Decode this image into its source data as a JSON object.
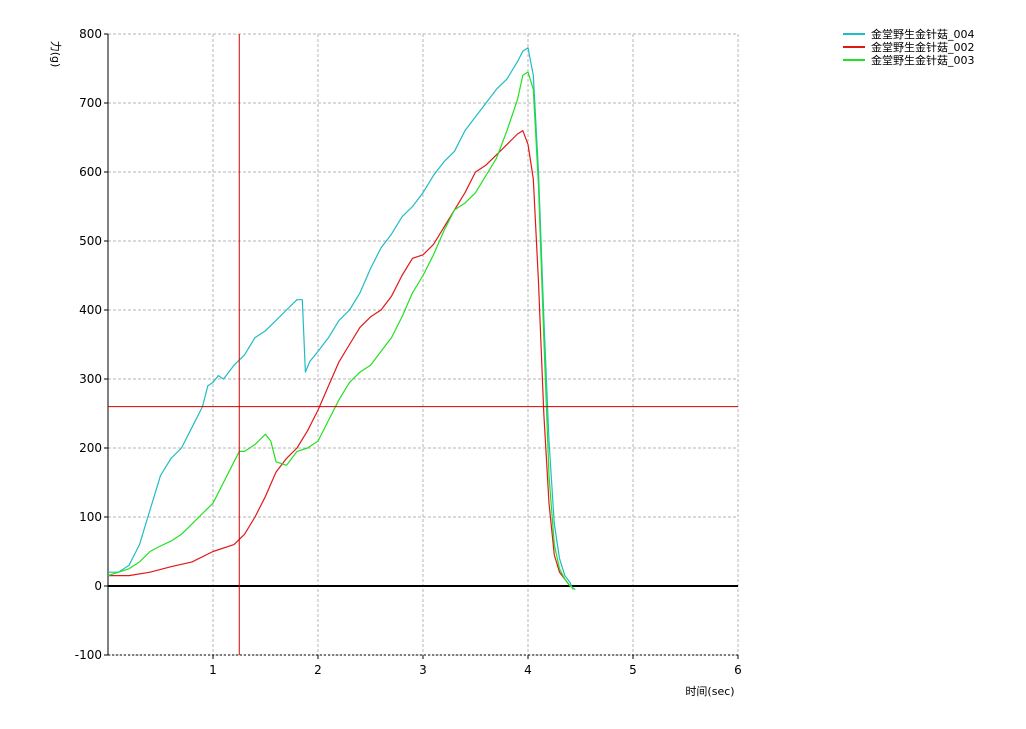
{
  "chart_data": {
    "type": "line",
    "title": "",
    "xlabel": "时间(sec)",
    "ylabel": "力(g)",
    "xlim": [
      0,
      6
    ],
    "ylim": [
      -100,
      800
    ],
    "x_ticks": [
      "1",
      "2",
      "3",
      "4",
      "5",
      "6"
    ],
    "y_ticks": [
      "-100",
      "0",
      "100",
      "200",
      "300",
      "400",
      "500",
      "600",
      "700",
      "800"
    ],
    "grid": true,
    "legend_position": "top-right",
    "cursor": {
      "x": 1.25,
      "y": 260
    },
    "series": [
      {
        "name": "金堂野生金针菇_004",
        "color": "#1fbcc4",
        "x": [
          0.0,
          0.1,
          0.2,
          0.3,
          0.4,
          0.5,
          0.6,
          0.7,
          0.8,
          0.9,
          0.95,
          1.0,
          1.05,
          1.1,
          1.2,
          1.3,
          1.4,
          1.5,
          1.6,
          1.7,
          1.8,
          1.85,
          1.88,
          1.92,
          2.0,
          2.1,
          2.2,
          2.3,
          2.4,
          2.5,
          2.6,
          2.7,
          2.8,
          2.9,
          3.0,
          3.1,
          3.2,
          3.3,
          3.4,
          3.5,
          3.6,
          3.7,
          3.8,
          3.9,
          3.95,
          4.0,
          4.05,
          4.1,
          4.15,
          4.2,
          4.25,
          4.3,
          4.35,
          4.4,
          4.43
        ],
        "values": [
          20,
          20,
          30,
          60,
          110,
          160,
          185,
          200,
          230,
          260,
          290,
          295,
          305,
          300,
          320,
          335,
          360,
          370,
          385,
          400,
          415,
          415,
          310,
          325,
          340,
          360,
          385,
          400,
          425,
          460,
          490,
          510,
          535,
          550,
          570,
          595,
          615,
          630,
          660,
          680,
          700,
          720,
          735,
          760,
          775,
          780,
          740,
          600,
          390,
          210,
          90,
          40,
          15,
          5,
          -5
        ]
      },
      {
        "name": "金堂野生金针菇_002",
        "color": "#e01818",
        "x": [
          0.0,
          0.2,
          0.4,
          0.6,
          0.8,
          1.0,
          1.2,
          1.3,
          1.4,
          1.5,
          1.6,
          1.7,
          1.8,
          1.9,
          2.0,
          2.1,
          2.2,
          2.3,
          2.4,
          2.5,
          2.6,
          2.7,
          2.8,
          2.9,
          3.0,
          3.1,
          3.2,
          3.3,
          3.4,
          3.5,
          3.6,
          3.7,
          3.8,
          3.9,
          3.95,
          4.0,
          4.05,
          4.1,
          4.15,
          4.2,
          4.25,
          4.3,
          4.35,
          4.4
        ],
        "values": [
          15,
          15,
          20,
          28,
          35,
          50,
          60,
          75,
          100,
          130,
          165,
          185,
          200,
          225,
          255,
          290,
          325,
          350,
          375,
          390,
          400,
          420,
          450,
          475,
          480,
          495,
          520,
          545,
          570,
          600,
          610,
          625,
          640,
          655,
          660,
          640,
          590,
          440,
          250,
          120,
          45,
          20,
          10,
          0
        ]
      },
      {
        "name": "金堂野生金针菇_003",
        "color": "#22e022",
        "x": [
          0.0,
          0.1,
          0.2,
          0.3,
          0.4,
          0.5,
          0.6,
          0.7,
          0.8,
          0.9,
          1.0,
          1.1,
          1.2,
          1.25,
          1.3,
          1.4,
          1.5,
          1.55,
          1.6,
          1.7,
          1.8,
          1.9,
          2.0,
          2.1,
          2.2,
          2.3,
          2.4,
          2.5,
          2.6,
          2.7,
          2.8,
          2.9,
          3.0,
          3.1,
          3.2,
          3.3,
          3.4,
          3.5,
          3.6,
          3.7,
          3.8,
          3.9,
          3.95,
          4.0,
          4.05,
          4.1,
          4.15,
          4.2,
          4.25,
          4.3,
          4.35,
          4.4,
          4.45
        ],
        "values": [
          15,
          20,
          25,
          35,
          50,
          58,
          65,
          75,
          90,
          105,
          120,
          150,
          180,
          195,
          195,
          205,
          220,
          210,
          180,
          175,
          195,
          200,
          210,
          240,
          270,
          295,
          310,
          320,
          340,
          360,
          390,
          425,
          450,
          480,
          515,
          545,
          555,
          570,
          595,
          620,
          660,
          705,
          740,
          745,
          720,
          580,
          360,
          160,
          60,
          25,
          10,
          0,
          -5
        ]
      }
    ]
  }
}
